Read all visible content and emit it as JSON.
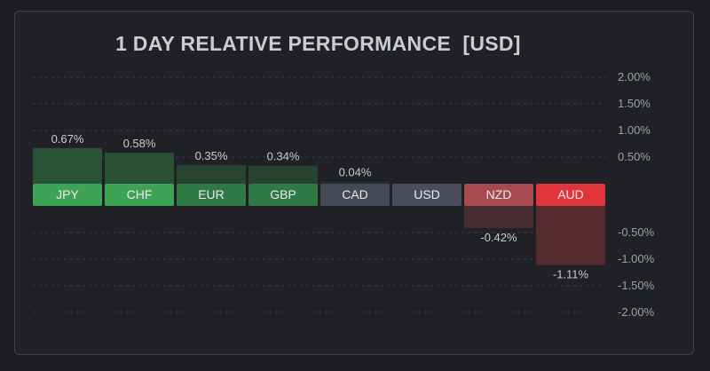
{
  "title": "1 DAY RELATIVE PERFORMANCE  [USD]",
  "colors": {
    "background": "#1f2126",
    "positive_strong": "#3fa356",
    "positive_mid": "#2f7a45",
    "neutral": "#434a55",
    "neutral_base": "#4a4d5c",
    "negative_mid": "#a8494f",
    "negative_strong": "#e2353b",
    "label": "#c9ccd2",
    "tick": "#9aa0aa"
  },
  "chart_data": {
    "type": "bar",
    "title": "1 DAY RELATIVE PERFORMANCE  [USD]",
    "categories": [
      "JPY",
      "CHF",
      "EUR",
      "GBP",
      "CAD",
      "USD",
      "NZD",
      "AUD"
    ],
    "values": [
      0.67,
      0.58,
      0.35,
      0.34,
      0.04,
      0,
      -0.42,
      -1.11
    ],
    "value_labels": [
      "0.67%",
      "0.58%",
      "0.35%",
      "0.34%",
      "0.04%",
      "",
      "-0.42%",
      "-1.11%"
    ],
    "y_ticks": [
      2.0,
      1.5,
      1.0,
      0.5,
      -0.5,
      -1.0,
      -1.5,
      -2.0
    ],
    "y_tick_labels": [
      "2.00%",
      "1.50%",
      "1.00%",
      "0.50%",
      "-0.50%",
      "-1.00%",
      "-1.50%",
      "-2.00%"
    ],
    "ylim": [
      -2.0,
      2.0
    ],
    "grid": true,
    "y_axis_position": "right",
    "legend": "none"
  }
}
